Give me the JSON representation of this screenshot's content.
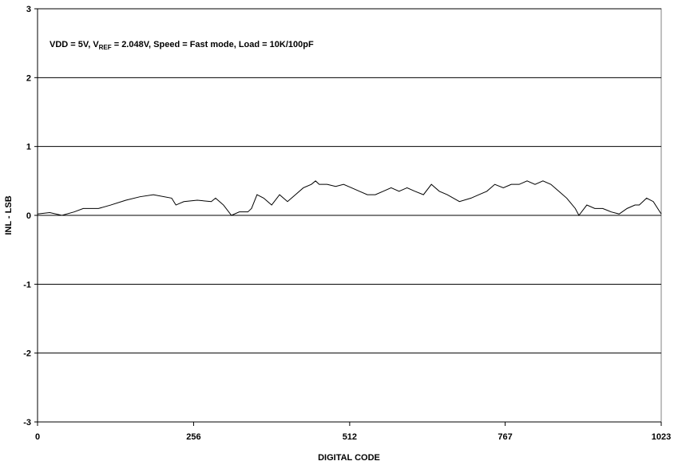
{
  "chart_data": {
    "type": "line",
    "annotation": [
      "VDD = 5V, V",
      "REF",
      " = 2.048V, Speed = Fast mode, Load = 10K/100pF"
    ],
    "xlabel": "DIGITAL CODE",
    "ylabel": "INL - LSB",
    "x": [
      0,
      20,
      40,
      60,
      75,
      100,
      120,
      145,
      168,
      190,
      220,
      227,
      240,
      262,
      285,
      292,
      305,
      318,
      331,
      345,
      351,
      360,
      371,
      384,
      397,
      410,
      423,
      436,
      449,
      456,
      462,
      475,
      489,
      502,
      515,
      528,
      541,
      554,
      567,
      580,
      593,
      606,
      619,
      633,
      646,
      659,
      672,
      692,
      711,
      724,
      737,
      750,
      764,
      777,
      790,
      803,
      816,
      829,
      842,
      855,
      868,
      882,
      888,
      901,
      914,
      927,
      941,
      954,
      967,
      980,
      987,
      999,
      1010,
      1023
    ],
    "series": [
      {
        "color": "#000000",
        "values": [
          0.02,
          0.04,
          0.0,
          0.05,
          0.1,
          0.1,
          0.15,
          0.22,
          0.27,
          0.3,
          0.25,
          0.15,
          0.2,
          0.22,
          0.2,
          0.25,
          0.15,
          0.0,
          0.05,
          0.05,
          0.1,
          0.3,
          0.25,
          0.15,
          0.3,
          0.2,
          0.3,
          0.4,
          0.45,
          0.5,
          0.45,
          0.45,
          0.42,
          0.45,
          0.4,
          0.35,
          0.3,
          0.3,
          0.35,
          0.4,
          0.35,
          0.4,
          0.35,
          0.3,
          0.45,
          0.35,
          0.3,
          0.2,
          0.25,
          0.3,
          0.35,
          0.45,
          0.4,
          0.45,
          0.45,
          0.5,
          0.45,
          0.5,
          0.45,
          0.35,
          0.25,
          0.1,
          0.0,
          0.15,
          0.1,
          0.1,
          0.05,
          0.02,
          0.1,
          0.15,
          0.15,
          0.25,
          0.2,
          0.02
        ]
      }
    ],
    "xlim": [
      0,
      1023
    ],
    "xticks": [
      0,
      256,
      512,
      767,
      1023
    ],
    "ylim": [
      -3,
      3
    ],
    "yticks": [
      -3,
      -2,
      -1,
      0,
      1,
      2,
      3
    ],
    "grid": true
  }
}
